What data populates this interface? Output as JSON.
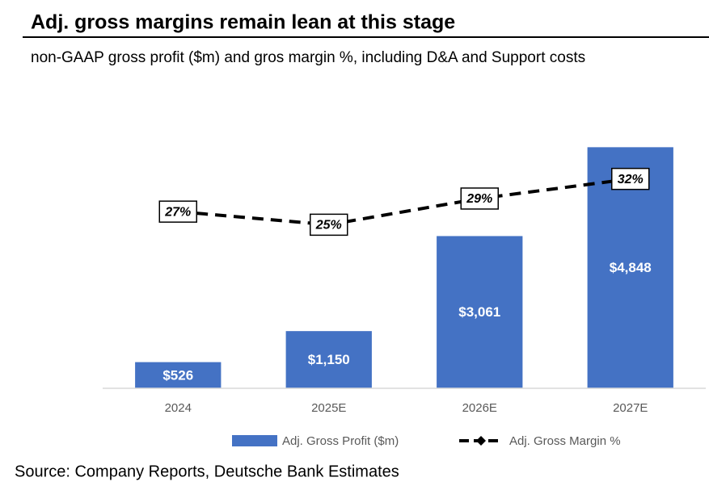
{
  "chart_data": {
    "type": "bar",
    "title": "Adj. gross margins remain lean at this stage",
    "subtitle": "non-GAAP gross profit ($m) and gros margin %, including D&A and Support costs",
    "source": "Source: Company Reports, Deutsche Bank Estimates",
    "categories": [
      "2024",
      "2025E",
      "2026E",
      "2027E"
    ],
    "ylim": [
      0,
      5000
    ],
    "y2lim": [
      0,
      38
    ],
    "series": [
      {
        "name": "Adj. Gross Profit ($m)",
        "type": "bar",
        "color": "#4472c4",
        "values": [
          526,
          1150,
          3061,
          4848
        ],
        "value_labels": [
          "$526",
          "$1,150",
          "$3,061",
          "$4,848"
        ]
      },
      {
        "name": "Adj. Gross Margin %",
        "type": "line",
        "axis": "y2",
        "color": "#000000",
        "values": [
          27,
          25,
          29,
          32
        ],
        "value_labels": [
          "27%",
          "25%",
          "29%",
          "32%"
        ]
      }
    ]
  }
}
